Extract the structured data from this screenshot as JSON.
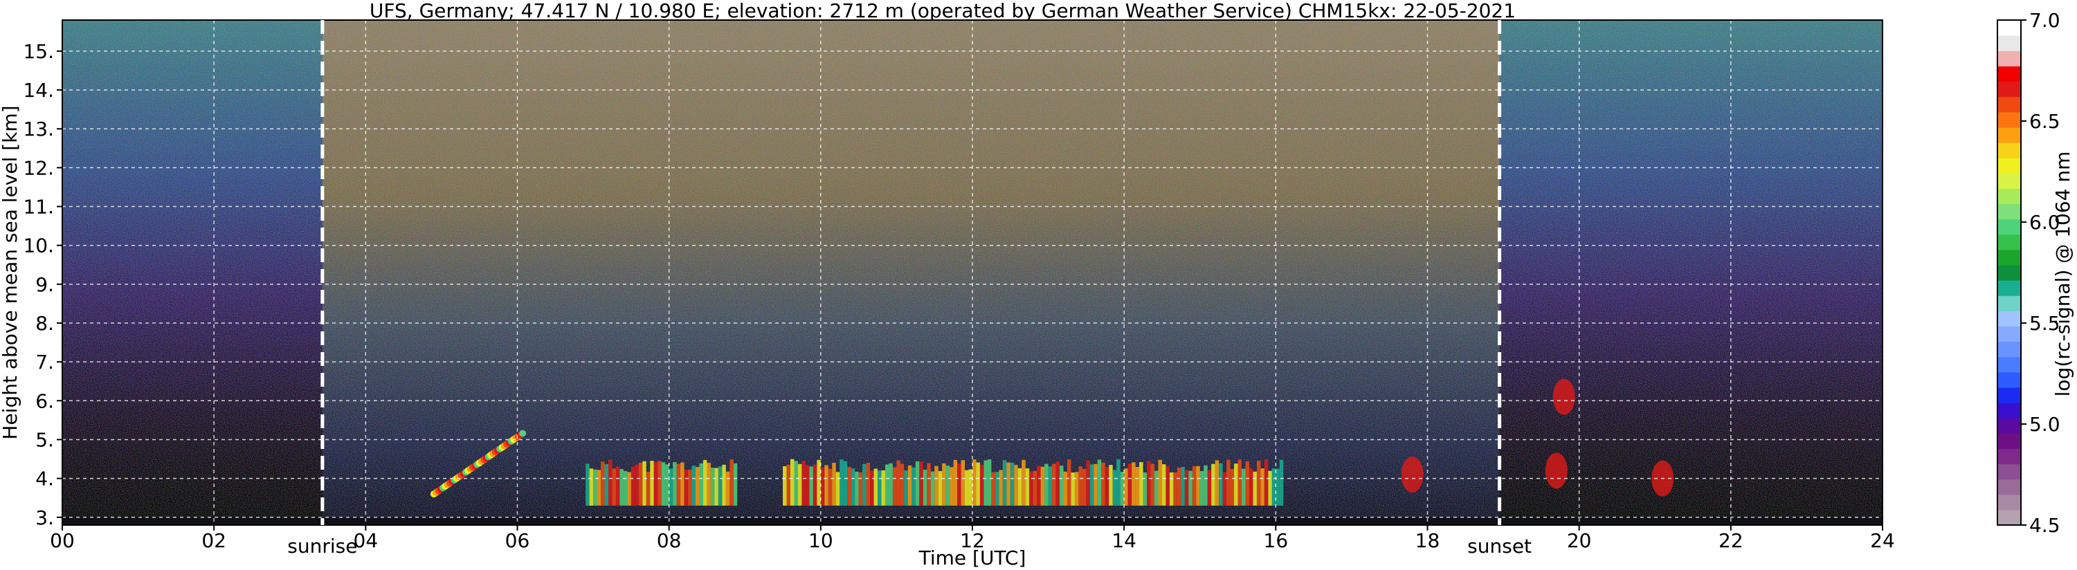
{
  "chart_data": {
    "type": "heatmap",
    "title": "UFS, Germany; 47.417 N / 10.980 E; elevation: 2712 m  (operated by German Weather Service)    CHM15kx: 22-05-2021",
    "xlabel": "Time [UTC]",
    "ylabel": "Height above mean sea level [km]",
    "xlim": [
      0,
      24
    ],
    "ylim": [
      2.8,
      15.8
    ],
    "x_ticks": [
      "00",
      "02",
      "04",
      "06",
      "08",
      "10",
      "12",
      "14",
      "16",
      "18",
      "20",
      "22",
      "24"
    ],
    "y_ticks": [
      "3.",
      "4.",
      "5.",
      "6.",
      "7.",
      "8.",
      "9.",
      "10.",
      "11.",
      "12.",
      "13.",
      "14.",
      "15."
    ],
    "grid": true,
    "colorbar": {
      "label": "log(rc-signal) @ 1064 nm",
      "range": [
        4.5,
        7.0
      ],
      "ticks": [
        "4.5",
        "5.0",
        "5.5",
        "6.0",
        "6.5",
        "7.0"
      ],
      "colors": [
        "#b5a1b0",
        "#a88aa4",
        "#996b98",
        "#8c4f92",
        "#7d2a8a",
        "#6f0f86",
        "#5a0aa0",
        "#3a0fd0",
        "#1a2cf0",
        "#2e5cff",
        "#4a7cff",
        "#6a93ff",
        "#86aaff",
        "#a0c4ff",
        "#6fd2c8",
        "#18b090",
        "#0e8f3c",
        "#1ba52a",
        "#34c24c",
        "#4ed27a",
        "#7ee07a",
        "#a8ea5a",
        "#d8f246",
        "#f0f020",
        "#f8d218",
        "#fca010",
        "#fa7510",
        "#f04a10",
        "#e01a18",
        "#f00000",
        "#f0b0b0",
        "#e8e8e8",
        "#ffffff"
      ]
    },
    "annotations": [
      {
        "label": "sunrise",
        "x": 3.43
      },
      {
        "label": "sunset",
        "x": 18.95
      }
    ]
  }
}
